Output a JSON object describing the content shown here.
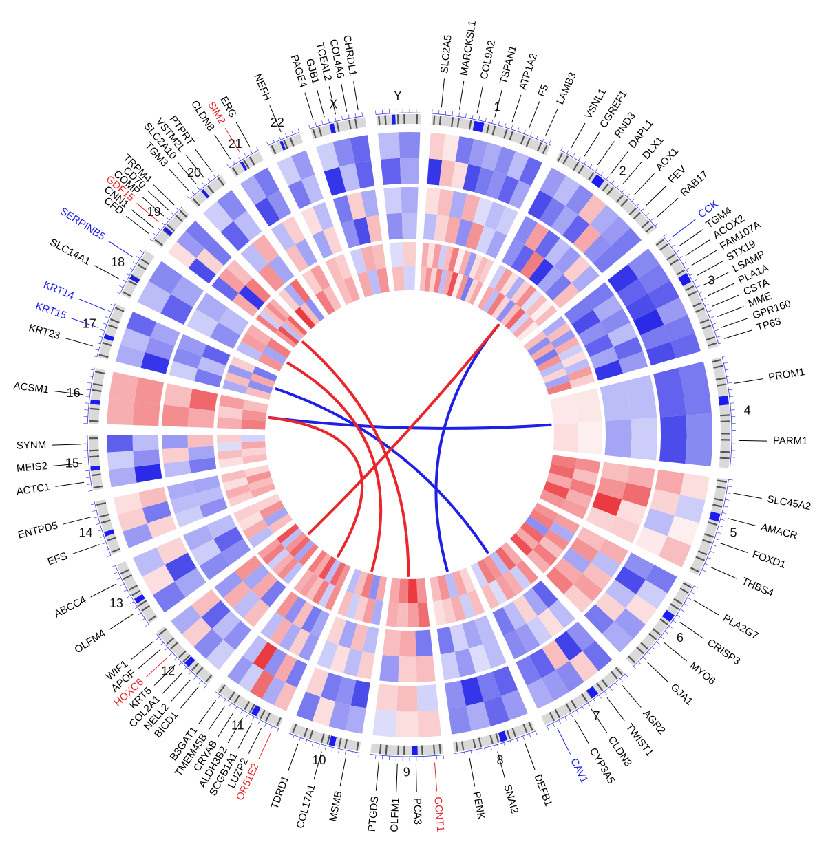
{
  "colors": {
    "up": "#e8262b",
    "down": "#1f1fe6",
    "neutral": "#000000",
    "ideogram_band_light": "#d9d9d9",
    "ideogram_band_dark": "#555555",
    "centromere": "#1c1cf0",
    "tick": "#3a3ae0"
  },
  "chromosomes": [
    {
      "name": "1",
      "tracks": [
        [
          -0.9,
          0.3,
          0.15,
          -0.8,
          -0.6,
          -0.5,
          -0.7,
          -0.4
        ],
        [
          -0.3,
          0.2,
          0.4,
          -0.5,
          0.5,
          -0.2,
          -0.4
        ],
        [
          0.3,
          0.5,
          0.2,
          0.6,
          -0.3,
          0.4,
          0.8,
          0.1,
          0.5,
          -0.6,
          0.2,
          0.4
        ]
      ],
      "genes": [
        {
          "label": "SLC2A5",
          "color": "neutral"
        },
        {
          "label": "MARCKSL1",
          "color": "neutral"
        },
        {
          "label": "COL9A2",
          "color": "neutral"
        },
        {
          "label": "TSPAN1",
          "color": "neutral"
        },
        {
          "label": "ATP1A2",
          "color": "neutral"
        },
        {
          "label": "F5",
          "color": "neutral"
        },
        {
          "label": "LAMB3",
          "color": "neutral"
        }
      ]
    },
    {
      "name": "2",
      "tracks": [
        [
          -0.8,
          -0.6,
          -0.4,
          -0.7,
          0.4,
          -0.5,
          -0.6
        ],
        [
          -0.5,
          -0.7,
          0.6,
          -0.9,
          -0.4,
          -0.6,
          0.3
        ],
        [
          0.4,
          -0.3,
          0.6,
          0.2,
          -0.5,
          0.3,
          0.7,
          -0.2,
          0.4,
          0.1
        ]
      ],
      "genes": [
        {
          "label": "VSNL1",
          "color": "neutral"
        },
        {
          "label": "CGREF1",
          "color": "neutral"
        },
        {
          "label": "RND3",
          "color": "neutral"
        },
        {
          "label": "DAPL1",
          "color": "neutral"
        },
        {
          "label": "DLX1",
          "color": "neutral"
        },
        {
          "label": "AOX1",
          "color": "neutral"
        },
        {
          "label": "FEV",
          "color": "neutral"
        },
        {
          "label": "RAB17",
          "color": "neutral"
        }
      ]
    },
    {
      "name": "3",
      "tracks": [
        [
          -0.9,
          -0.7,
          -0.8,
          -0.95,
          -0.6,
          -0.8
        ],
        [
          -0.6,
          -0.8,
          -0.5,
          -0.7,
          -0.4,
          -0.9
        ],
        [
          0.3,
          -0.5,
          0.4,
          -0.6,
          0.5,
          -0.3,
          0.2,
          -0.4,
          0.6
        ]
      ],
      "genes": [
        {
          "label": "CCK",
          "color": "down"
        },
        {
          "label": "TGM4",
          "color": "neutral"
        },
        {
          "label": "ACOX2",
          "color": "neutral"
        },
        {
          "label": "FAM107A",
          "color": "neutral"
        },
        {
          "label": "STX19",
          "color": "neutral"
        },
        {
          "label": "LSAMP",
          "color": "neutral"
        },
        {
          "label": "PLA1A",
          "color": "neutral"
        },
        {
          "label": "CSTA",
          "color": "neutral"
        },
        {
          "label": "MME",
          "color": "neutral"
        },
        {
          "label": "GPR160",
          "color": "neutral"
        },
        {
          "label": "TP63",
          "color": "neutral"
        }
      ]
    },
    {
      "name": "4",
      "tracks": [
        [
          -0.7,
          -0.8
        ],
        [
          -0.3,
          -0.4
        ],
        [
          0.1,
          0.15
        ]
      ],
      "genes": [
        {
          "label": "PROM1",
          "color": "neutral"
        },
        {
          "label": "PARM1",
          "color": "neutral"
        }
      ]
    },
    {
      "name": "5",
      "tracks": [
        [
          0.4,
          0.2,
          -0.3,
          0.1
        ],
        [
          0.3,
          0.5,
          0.9,
          0.2
        ],
        [
          0.6,
          0.7,
          0.4,
          0.8,
          0.5
        ]
      ],
      "genes": [
        {
          "label": "SLC45A2",
          "color": "neutral"
        },
        {
          "label": "AMACR",
          "color": "neutral"
        },
        {
          "label": "FOXD1",
          "color": "neutral"
        },
        {
          "label": "THBS4",
          "color": "neutral"
        }
      ]
    },
    {
      "name": "6",
      "tracks": [
        [
          -0.5,
          -0.8,
          -0.3,
          0.2,
          -0.6
        ],
        [
          0.3,
          0.5,
          -0.4,
          0.4,
          0.6
        ],
        [
          0.5,
          0.6,
          -0.5,
          0.7,
          0.4,
          0.8
        ]
      ],
      "genes": [
        {
          "label": "PLA2G7",
          "color": "neutral"
        },
        {
          "label": "CRISP3",
          "color": "neutral"
        },
        {
          "label": "MYO6",
          "color": "neutral"
        },
        {
          "label": "GJA1",
          "color": "neutral"
        }
      ]
    },
    {
      "name": "7",
      "tracks": [
        [
          -0.5,
          -0.85,
          0.3,
          -0.7,
          -0.6
        ],
        [
          -0.7,
          -0.4,
          0.2,
          -0.3,
          -0.6
        ],
        [
          0.4,
          0.7,
          -0.3,
          0.5,
          0.6,
          -0.2
        ]
      ],
      "genes": [
        {
          "label": "AGR2",
          "color": "neutral"
        },
        {
          "label": "TWIST1",
          "color": "neutral"
        },
        {
          "label": "CLDN3",
          "color": "neutral"
        },
        {
          "label": "CYP3A5",
          "color": "neutral"
        },
        {
          "label": "CAV1",
          "color": "down"
        }
      ]
    },
    {
      "name": "8",
      "tracks": [
        [
          -0.7,
          -0.6,
          -0.9,
          -0.5
        ],
        [
          -0.3,
          -0.4,
          -0.2,
          -0.6
        ],
        [
          0.2,
          0.4,
          -0.3,
          0.5,
          0.3
        ]
      ],
      "genes": [
        {
          "label": "DEFB1",
          "color": "neutral"
        },
        {
          "label": "SNAI2",
          "color": "neutral"
        },
        {
          "label": "PENK",
          "color": "neutral"
        }
      ]
    },
    {
      "name": "9",
      "tracks": [
        [
          -0.2,
          0.3,
          0.2
        ],
        [
          -0.6,
          0.4,
          0.3
        ],
        [
          0.5,
          0.9,
          0.6,
          0.4
        ]
      ],
      "genes": [
        {
          "label": "GCNT1",
          "color": "up"
        },
        {
          "label": "PCA3",
          "color": "neutral"
        },
        {
          "label": "OLFM1",
          "color": "neutral"
        },
        {
          "label": "PTGDS",
          "color": "neutral"
        }
      ]
    },
    {
      "name": "10",
      "tracks": [
        [
          -0.8,
          -0.5,
          -0.6,
          0.2
        ],
        [
          -0.3,
          0.3,
          -0.4,
          0.2
        ],
        [
          0.4,
          -0.5,
          0.6,
          0.3,
          -0.3
        ]
      ],
      "genes": [
        {
          "label": "MSMB",
          "color": "neutral"
        },
        {
          "label": "COL17A1",
          "color": "neutral"
        },
        {
          "label": "TDRD1",
          "color": "neutral"
        }
      ]
    },
    {
      "name": "11",
      "tracks": [
        [
          -0.6,
          0.4,
          -0.5,
          0.9,
          -0.3
        ],
        [
          -0.4,
          -0.6,
          0.3,
          -0.5,
          0.5
        ],
        [
          0.5,
          0.7,
          -0.3,
          0.8,
          0.4,
          0.6
        ]
      ],
      "genes": [
        {
          "label": "OR51E2",
          "color": "up"
        },
        {
          "label": "LUZP2",
          "color": "neutral"
        },
        {
          "label": "SCGB1A1",
          "color": "neutral"
        },
        {
          "label": "ALDH3B2",
          "color": "neutral"
        },
        {
          "label": "CRYAB",
          "color": "neutral"
        },
        {
          "label": "TMEM45B",
          "color": "neutral"
        },
        {
          "label": "B3GAT1",
          "color": "neutral"
        }
      ]
    },
    {
      "name": "12",
      "tracks": [
        [
          -0.5,
          -0.3,
          -0.7,
          0.3
        ],
        [
          -0.6,
          0.4,
          -0.4,
          0.5
        ],
        [
          0.6,
          -0.4,
          0.7,
          0.5,
          -0.3,
          0.8
        ]
      ],
      "genes": [
        {
          "label": "BICD1",
          "color": "neutral"
        },
        {
          "label": "NELL2",
          "color": "neutral"
        },
        {
          "label": "COL2A1",
          "color": "neutral"
        },
        {
          "label": "KRT5",
          "color": "neutral"
        },
        {
          "label": "HOXC6",
          "color": "up"
        },
        {
          "label": "APOF",
          "color": "neutral"
        },
        {
          "label": "WIF1",
          "color": "neutral"
        }
      ]
    },
    {
      "name": "13",
      "tracks": [
        [
          -0.4,
          -0.8,
          0.2
        ],
        [
          -0.5,
          -0.7,
          -0.3
        ],
        [
          0.3,
          -0.4,
          0.5,
          0.2
        ]
      ],
      "genes": [
        {
          "label": "OLFM4",
          "color": "neutral"
        },
        {
          "label": "ABCC4",
          "color": "neutral"
        }
      ]
    },
    {
      "name": "14",
      "tracks": [
        [
          0.2,
          -0.6,
          0.3
        ],
        [
          -0.5,
          -0.3,
          -0.4
        ],
        [
          0.4,
          0.3,
          0.5,
          0.2
        ]
      ],
      "genes": [
        {
          "label": "EFS",
          "color": "neutral"
        },
        {
          "label": "ENTPD5",
          "color": "neutral"
        }
      ]
    },
    {
      "name": "15",
      "tracks": [
        [
          -0.95,
          -0.5,
          -0.3
        ],
        [
          -0.6,
          -0.4,
          0.3
        ],
        [
          0.3,
          0.2,
          0.4,
          -0.2
        ]
      ],
      "genes": [
        {
          "label": "ACTC1",
          "color": "neutral"
        },
        {
          "label": "MEIS2",
          "color": "neutral"
        },
        {
          "label": "SYNM",
          "color": "neutral"
        }
      ]
    },
    {
      "name": "16",
      "tracks": [
        [
          0.5,
          0.5
        ],
        [
          0.4,
          0.7
        ],
        [
          0.6,
          0.5,
          0.3
        ]
      ],
      "genes": [
        {
          "label": "ACSM1",
          "color": "neutral"
        }
      ]
    },
    {
      "name": "17",
      "tracks": [
        [
          -0.9,
          -0.5,
          -0.4
        ],
        [
          -0.6,
          -0.3,
          -0.7
        ],
        [
          0.3,
          -0.5,
          0.4,
          -0.6
        ]
      ],
      "genes": [
        {
          "label": "KRT23",
          "color": "neutral"
        },
        {
          "label": "KRT15",
          "color": "down"
        },
        {
          "label": "KRT14",
          "color": "down"
        }
      ]
    },
    {
      "name": "18",
      "tracks": [
        [
          -0.7,
          -0.4
        ],
        [
          -0.5,
          -0.3
        ],
        [
          0.5,
          -0.4,
          0.6
        ]
      ],
      "genes": [
        {
          "label": "SLC14A1",
          "color": "neutral"
        },
        {
          "label": "SERPINB5",
          "color": "down"
        }
      ]
    },
    {
      "name": "19",
      "tracks": [
        [
          -0.8,
          0.2,
          -0.6
        ],
        [
          0.4,
          -0.9,
          0.6
        ],
        [
          0.5,
          0.8,
          -0.3,
          0.4,
          0.7
        ]
      ],
      "genes": [
        {
          "label": "CFD",
          "color": "neutral"
        },
        {
          "label": "CNN1",
          "color": "neutral"
        },
        {
          "label": "GDF15",
          "color": "up"
        },
        {
          "label": "COMP",
          "color": "neutral"
        },
        {
          "label": "CD70",
          "color": "neutral"
        },
        {
          "label": "TRPM4",
          "color": "neutral"
        }
      ]
    },
    {
      "name": "20",
      "tracks": [
        [
          -0.7,
          -0.3
        ],
        [
          0.5,
          -0.4
        ],
        [
          0.9,
          0.3,
          -0.5
        ]
      ],
      "genes": [
        {
          "label": "TGM3",
          "color": "neutral"
        },
        {
          "label": "SLC2A10",
          "color": "neutral"
        },
        {
          "label": "VSTM2L",
          "color": "neutral"
        },
        {
          "label": "PTPRT",
          "color": "neutral"
        }
      ]
    },
    {
      "name": "21",
      "tracks": [
        [
          -0.8,
          -0.5
        ],
        [
          0.3,
          -0.4
        ],
        [
          0.6,
          0.3
        ]
      ],
      "genes": [
        {
          "label": "CLDN8",
          "color": "neutral"
        },
        {
          "label": "SIM2",
          "color": "up"
        },
        {
          "label": "ERG",
          "color": "neutral"
        }
      ]
    },
    {
      "name": "22",
      "tracks": [
        [
          -0.6,
          -0.3
        ],
        [
          -0.4,
          0.2
        ],
        [
          0.3,
          0.4
        ]
      ],
      "genes": [
        {
          "label": "NEFH",
          "color": "neutral"
        }
      ]
    },
    {
      "name": "X",
      "tracks": [
        [
          -0.9,
          -0.3,
          -0.7
        ],
        [
          -0.5,
          -0.8,
          0.3
        ],
        [
          0.4,
          -0.3,
          0.5
        ]
      ],
      "genes": [
        {
          "label": "PAGE4",
          "color": "neutral"
        },
        {
          "label": "GJB1",
          "color": "neutral"
        },
        {
          "label": "TCEAL2",
          "color": "neutral"
        },
        {
          "label": "COL4A6",
          "color": "neutral"
        },
        {
          "label": "CHRDL1",
          "color": "neutral"
        }
      ]
    },
    {
      "name": "Y",
      "tracks": [
        [
          -0.7,
          -0.4
        ],
        [
          -0.5,
          -0.3
        ],
        [
          0.3,
          -0.2
        ]
      ],
      "genes": []
    }
  ],
  "links": [
    {
      "from": "8",
      "to": "2",
      "color": "down"
    },
    {
      "from": "4",
      "to": "16",
      "color": "down"
    },
    {
      "from": "7",
      "to": "17",
      "color": "down"
    },
    {
      "from": "9",
      "to": "19",
      "color": "up"
    },
    {
      "from": "10",
      "to": "18",
      "color": "up"
    },
    {
      "from": "11",
      "to": "16",
      "color": "up"
    },
    {
      "from": "12",
      "to": "2",
      "color": "up"
    }
  ]
}
